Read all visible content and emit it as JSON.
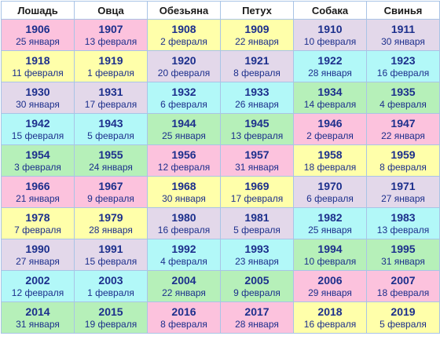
{
  "headers": [
    "Лошадь",
    "Овца",
    "Обезьяна",
    "Петух",
    "Собака",
    "Свинья"
  ],
  "colors": {
    "pink": "#fcc2dd",
    "yellow": "#ffffaa",
    "lavender": "#e3d8ea",
    "cyan": "#b2f8f8",
    "green": "#b6f0b9",
    "border": "#a9c4e6",
    "text": "#1c2f8c"
  },
  "rows": [
    [
      {
        "year": "1906",
        "date": "25 января",
        "color": "pink"
      },
      {
        "year": "1907",
        "date": "13 февраля",
        "color": "pink"
      },
      {
        "year": "1908",
        "date": "2 февраля",
        "color": "yellow"
      },
      {
        "year": "1909",
        "date": "22 января",
        "color": "yellow"
      },
      {
        "year": "1910",
        "date": "10 февраля",
        "color": "lavender"
      },
      {
        "year": "1911",
        "date": "30 января",
        "color": "lavender"
      }
    ],
    [
      {
        "year": "1918",
        "date": "11 февраля",
        "color": "yellow"
      },
      {
        "year": "1919",
        "date": "1 февраля",
        "color": "yellow"
      },
      {
        "year": "1920",
        "date": "20 февраля",
        "color": "lavender"
      },
      {
        "year": "1921",
        "date": "8 февраля",
        "color": "lavender"
      },
      {
        "year": "1922",
        "date": "28 января",
        "color": "cyan"
      },
      {
        "year": "1923",
        "date": "16 февраля",
        "color": "cyan"
      }
    ],
    [
      {
        "year": "1930",
        "date": "30 января",
        "color": "lavender"
      },
      {
        "year": "1931",
        "date": "17 февраля",
        "color": "lavender"
      },
      {
        "year": "1932",
        "date": "6 февраля",
        "color": "cyan"
      },
      {
        "year": "1933",
        "date": "26 января",
        "color": "cyan"
      },
      {
        "year": "1934",
        "date": "14 февраля",
        "color": "green"
      },
      {
        "year": "1935",
        "date": "4 февраля",
        "color": "green"
      }
    ],
    [
      {
        "year": "1942",
        "date": "15 февраля",
        "color": "cyan"
      },
      {
        "year": "1943",
        "date": "5 февраля",
        "color": "cyan"
      },
      {
        "year": "1944",
        "date": "25 января",
        "color": "green"
      },
      {
        "year": "1945",
        "date": "13 февраля",
        "color": "green"
      },
      {
        "year": "1946",
        "date": "2 февраля",
        "color": "pink"
      },
      {
        "year": "1947",
        "date": "22 января",
        "color": "pink"
      }
    ],
    [
      {
        "year": "1954",
        "date": "3 февраля",
        "color": "green"
      },
      {
        "year": "1955",
        "date": "24 января",
        "color": "green"
      },
      {
        "year": "1956",
        "date": "12 февраля",
        "color": "pink"
      },
      {
        "year": "1957",
        "date": "31 января",
        "color": "pink"
      },
      {
        "year": "1958",
        "date": "18 февраля",
        "color": "yellow"
      },
      {
        "year": "1959",
        "date": "8 февраля",
        "color": "yellow"
      }
    ],
    [
      {
        "year": "1966",
        "date": "21 января",
        "color": "pink"
      },
      {
        "year": "1967",
        "date": "9 февраля",
        "color": "pink"
      },
      {
        "year": "1968",
        "date": "30 января",
        "color": "yellow"
      },
      {
        "year": "1969",
        "date": "17 февраля",
        "color": "yellow"
      },
      {
        "year": "1970",
        "date": "6 февраля",
        "color": "lavender"
      },
      {
        "year": "1971",
        "date": "27 января",
        "color": "lavender"
      }
    ],
    [
      {
        "year": "1978",
        "date": "7 февраля",
        "color": "yellow"
      },
      {
        "year": "1979",
        "date": "28 января",
        "color": "yellow"
      },
      {
        "year": "1980",
        "date": "16 февраля",
        "color": "lavender"
      },
      {
        "year": "1981",
        "date": "5 февраля",
        "color": "lavender"
      },
      {
        "year": "1982",
        "date": "25 января",
        "color": "cyan"
      },
      {
        "year": "1983",
        "date": "13 февраля",
        "color": "cyan"
      }
    ],
    [
      {
        "year": "1990",
        "date": "27 января",
        "color": "lavender"
      },
      {
        "year": "1991",
        "date": "15 февраля",
        "color": "lavender"
      },
      {
        "year": "1992",
        "date": "4 февраля",
        "color": "cyan"
      },
      {
        "year": "1993",
        "date": "23 января",
        "color": "cyan"
      },
      {
        "year": "1994",
        "date": "10 февраля",
        "color": "green"
      },
      {
        "year": "1995",
        "date": "31 января",
        "color": "green"
      }
    ],
    [
      {
        "year": "2002",
        "date": "12 февраля",
        "color": "cyan"
      },
      {
        "year": "2003",
        "date": "1 февраля",
        "color": "cyan"
      },
      {
        "year": "2004",
        "date": "22 января",
        "color": "green"
      },
      {
        "year": "2005",
        "date": "9 февраля",
        "color": "green"
      },
      {
        "year": "2006",
        "date": "29 января",
        "color": "pink"
      },
      {
        "year": "2007",
        "date": "18 февраля",
        "color": "pink"
      }
    ],
    [
      {
        "year": "2014",
        "date": "31 января",
        "color": "green"
      },
      {
        "year": "2015",
        "date": "19 февраля",
        "color": "green"
      },
      {
        "year": "2016",
        "date": "8 февраля",
        "color": "pink"
      },
      {
        "year": "2017",
        "date": "28 января",
        "color": "pink"
      },
      {
        "year": "2018",
        "date": "16 февраля",
        "color": "yellow"
      },
      {
        "year": "2019",
        "date": "5 февраля",
        "color": "yellow"
      }
    ]
  ]
}
